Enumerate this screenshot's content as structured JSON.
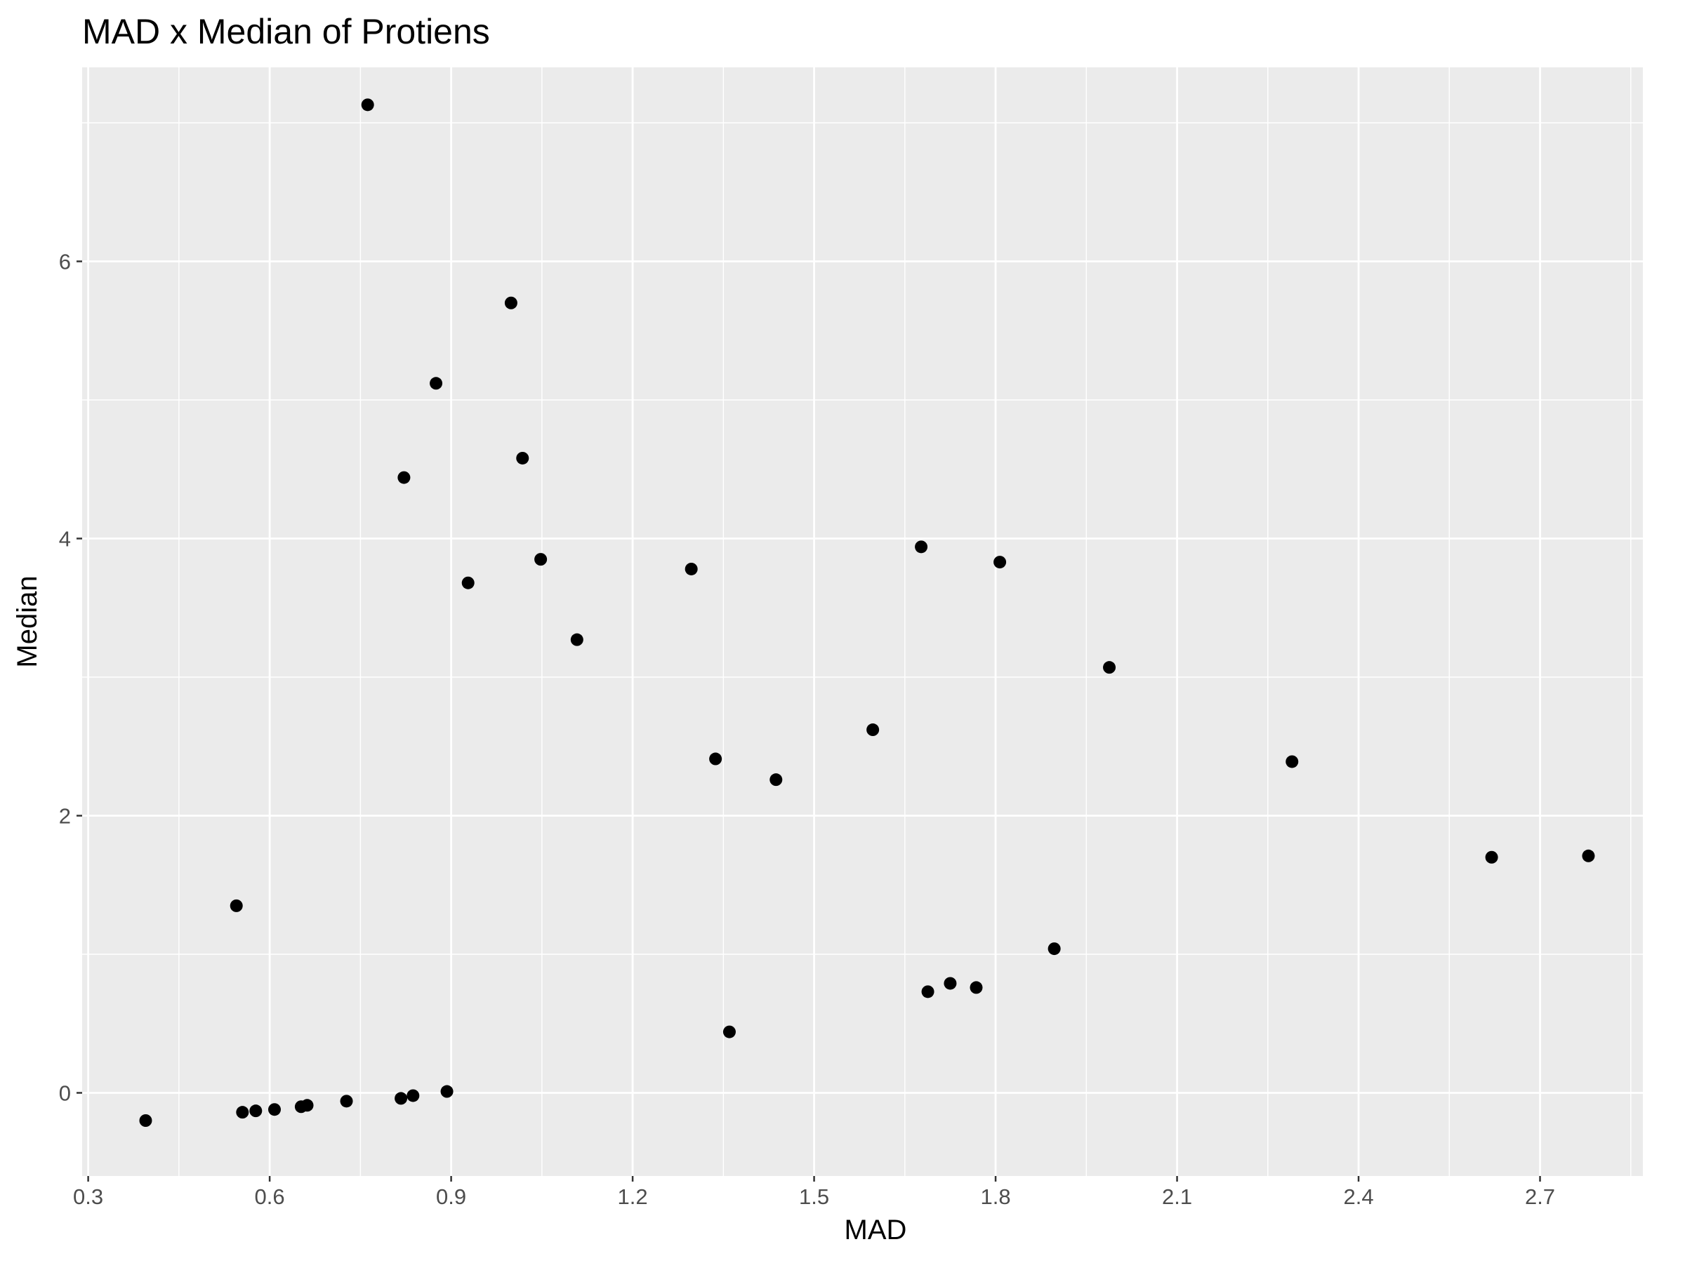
{
  "chart_data": {
    "type": "scatter",
    "title": "MAD x Median of Protiens",
    "xlabel": "MAD",
    "ylabel": "Median",
    "xlim": [
      0.29,
      2.87
    ],
    "ylim": [
      -0.6,
      7.4
    ],
    "x_ticks": [
      0.3,
      0.6,
      0.9,
      1.2,
      1.5,
      1.8,
      2.1,
      2.4,
      2.7
    ],
    "x_tick_labels": [
      "0.3",
      "0.6",
      "0.9",
      "1.2",
      "1.5",
      "1.8",
      "2.1",
      "2.4",
      "2.7"
    ],
    "y_ticks": [
      0,
      2,
      4,
      6
    ],
    "y_tick_labels": [
      "0",
      "2",
      "4",
      "6"
    ],
    "grid": true,
    "panel_color": "#ebebeb",
    "point_color": "#000000",
    "points": [
      {
        "x": 0.395,
        "y": -0.2
      },
      {
        "x": 0.545,
        "y": 1.35
      },
      {
        "x": 0.555,
        "y": -0.14
      },
      {
        "x": 0.577,
        "y": -0.13
      },
      {
        "x": 0.608,
        "y": -0.12
      },
      {
        "x": 0.652,
        "y": -0.1
      },
      {
        "x": 0.662,
        "y": -0.09
      },
      {
        "x": 0.727,
        "y": -0.06
      },
      {
        "x": 0.762,
        "y": 7.13
      },
      {
        "x": 0.817,
        "y": -0.04
      },
      {
        "x": 0.822,
        "y": 4.44
      },
      {
        "x": 0.837,
        "y": -0.02
      },
      {
        "x": 0.875,
        "y": 5.12
      },
      {
        "x": 0.893,
        "y": 0.01
      },
      {
        "x": 0.928,
        "y": 3.68
      },
      {
        "x": 0.999,
        "y": 5.7
      },
      {
        "x": 1.018,
        "y": 4.58
      },
      {
        "x": 1.048,
        "y": 3.85
      },
      {
        "x": 1.108,
        "y": 3.27
      },
      {
        "x": 1.297,
        "y": 3.78
      },
      {
        "x": 1.337,
        "y": 2.41
      },
      {
        "x": 1.36,
        "y": 0.44
      },
      {
        "x": 1.437,
        "y": 2.26
      },
      {
        "x": 1.597,
        "y": 2.62
      },
      {
        "x": 1.677,
        "y": 3.94
      },
      {
        "x": 1.688,
        "y": 0.73
      },
      {
        "x": 1.725,
        "y": 0.79
      },
      {
        "x": 1.768,
        "y": 0.76
      },
      {
        "x": 1.807,
        "y": 3.83
      },
      {
        "x": 1.897,
        "y": 1.04
      },
      {
        "x": 1.988,
        "y": 3.07
      },
      {
        "x": 2.29,
        "y": 2.39
      },
      {
        "x": 2.62,
        "y": 1.7
      },
      {
        "x": 2.78,
        "y": 1.71
      }
    ]
  }
}
